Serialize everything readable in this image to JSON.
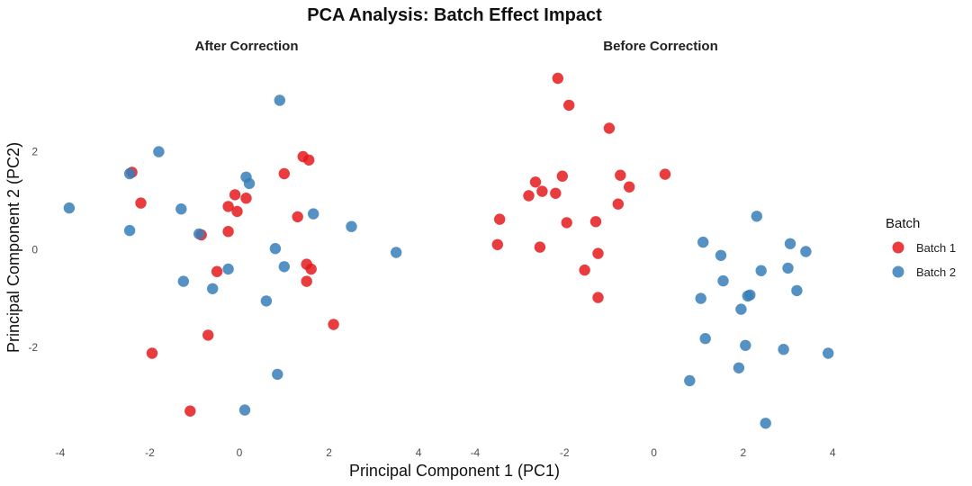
{
  "chart_data": {
    "type": "scatter",
    "title": "PCA Analysis: Batch Effect Impact",
    "xlabel": "Principal Component 1 (PC1)",
    "ylabel": "Principal Component 2 (PC2)",
    "xlim": [
      -4.2,
      4.5
    ],
    "ylim": [
      -3.95,
      3.85
    ],
    "x_ticks": [
      -4,
      -2,
      0,
      2,
      4
    ],
    "y_ticks": [
      -2,
      0,
      2
    ],
    "legend": {
      "title": "Batch",
      "position": "right",
      "items": [
        {
          "name": "Batch 1",
          "color": "#e41a1c"
        },
        {
          "name": "Batch 2",
          "color": "#377eb8"
        }
      ]
    },
    "facets": [
      {
        "title": "After Correction",
        "series": [
          {
            "name": "Batch 1",
            "points": [
              [
                -2.4,
                1.58
              ],
              [
                -2.2,
                0.95
              ],
              [
                -1.95,
                -2.12
              ],
              [
                -1.1,
                -3.3
              ],
              [
                -0.85,
                0.3
              ],
              [
                -0.7,
                -1.75
              ],
              [
                -0.5,
                -0.45
              ],
              [
                -0.25,
                0.88
              ],
              [
                -0.25,
                0.37
              ],
              [
                -0.1,
                1.12
              ],
              [
                -0.05,
                0.78
              ],
              [
                0.15,
                1.05
              ],
              [
                1.0,
                1.55
              ],
              [
                1.3,
                0.67
              ],
              [
                1.42,
                1.9
              ],
              [
                1.55,
                1.83
              ],
              [
                1.5,
                -0.3
              ],
              [
                1.6,
                -0.4
              ],
              [
                1.5,
                -0.65
              ],
              [
                2.1,
                -1.53
              ]
            ]
          },
          {
            "name": "Batch 2",
            "points": [
              [
                -3.8,
                0.85
              ],
              [
                -2.45,
                1.55
              ],
              [
                -2.45,
                0.39
              ],
              [
                -1.8,
                2.0
              ],
              [
                -1.3,
                0.83
              ],
              [
                -1.25,
                -0.65
              ],
              [
                -0.9,
                0.32
              ],
              [
                -0.6,
                -0.8
              ],
              [
                -0.25,
                -0.4
              ],
              [
                0.15,
                1.48
              ],
              [
                0.22,
                1.35
              ],
              [
                0.6,
                -1.05
              ],
              [
                0.8,
                0.02
              ],
              [
                0.85,
                -2.55
              ],
              [
                0.9,
                3.05
              ],
              [
                1.0,
                -0.35
              ],
              [
                1.65,
                0.73
              ],
              [
                2.5,
                0.47
              ],
              [
                3.5,
                -0.06
              ],
              [
                0.12,
                -3.28
              ]
            ]
          }
        ]
      },
      {
        "title": "Before Correction",
        "series": [
          {
            "name": "Batch 1",
            "points": [
              [
                -2.15,
                3.5
              ],
              [
                -1.9,
                2.95
              ],
              [
                -1.0,
                2.48
              ],
              [
                -0.75,
                1.52
              ],
              [
                -0.55,
                1.28
              ],
              [
                0.25,
                1.54
              ],
              [
                -2.05,
                1.5
              ],
              [
                -2.65,
                1.38
              ],
              [
                -2.5,
                1.19
              ],
              [
                -2.2,
                1.15
              ],
              [
                -2.8,
                1.1
              ],
              [
                -3.45,
                0.62
              ],
              [
                -1.95,
                0.55
              ],
              [
                -1.3,
                0.57
              ],
              [
                -0.8,
                0.93
              ],
              [
                -3.5,
                0.1
              ],
              [
                -2.55,
                0.05
              ],
              [
                -1.25,
                -0.08
              ],
              [
                -1.55,
                -0.42
              ],
              [
                -1.25,
                -0.98
              ]
            ]
          },
          {
            "name": "Batch 2",
            "points": [
              [
                2.3,
                0.68
              ],
              [
                1.1,
                0.15
              ],
              [
                3.05,
                0.12
              ],
              [
                3.4,
                -0.04
              ],
              [
                1.5,
                -0.12
              ],
              [
                3.0,
                -0.38
              ],
              [
                2.4,
                -0.43
              ],
              [
                1.55,
                -0.64
              ],
              [
                3.2,
                -0.84
              ],
              [
                2.15,
                -0.93
              ],
              [
                2.1,
                -0.95
              ],
              [
                1.05,
                -1.0
              ],
              [
                1.95,
                -1.22
              ],
              [
                1.15,
                -1.82
              ],
              [
                2.05,
                -1.96
              ],
              [
                2.9,
                -2.04
              ],
              [
                3.9,
                -2.12
              ],
              [
                1.9,
                -2.42
              ],
              [
                0.8,
                -2.68
              ],
              [
                2.5,
                -3.55
              ]
            ]
          }
        ]
      }
    ]
  }
}
